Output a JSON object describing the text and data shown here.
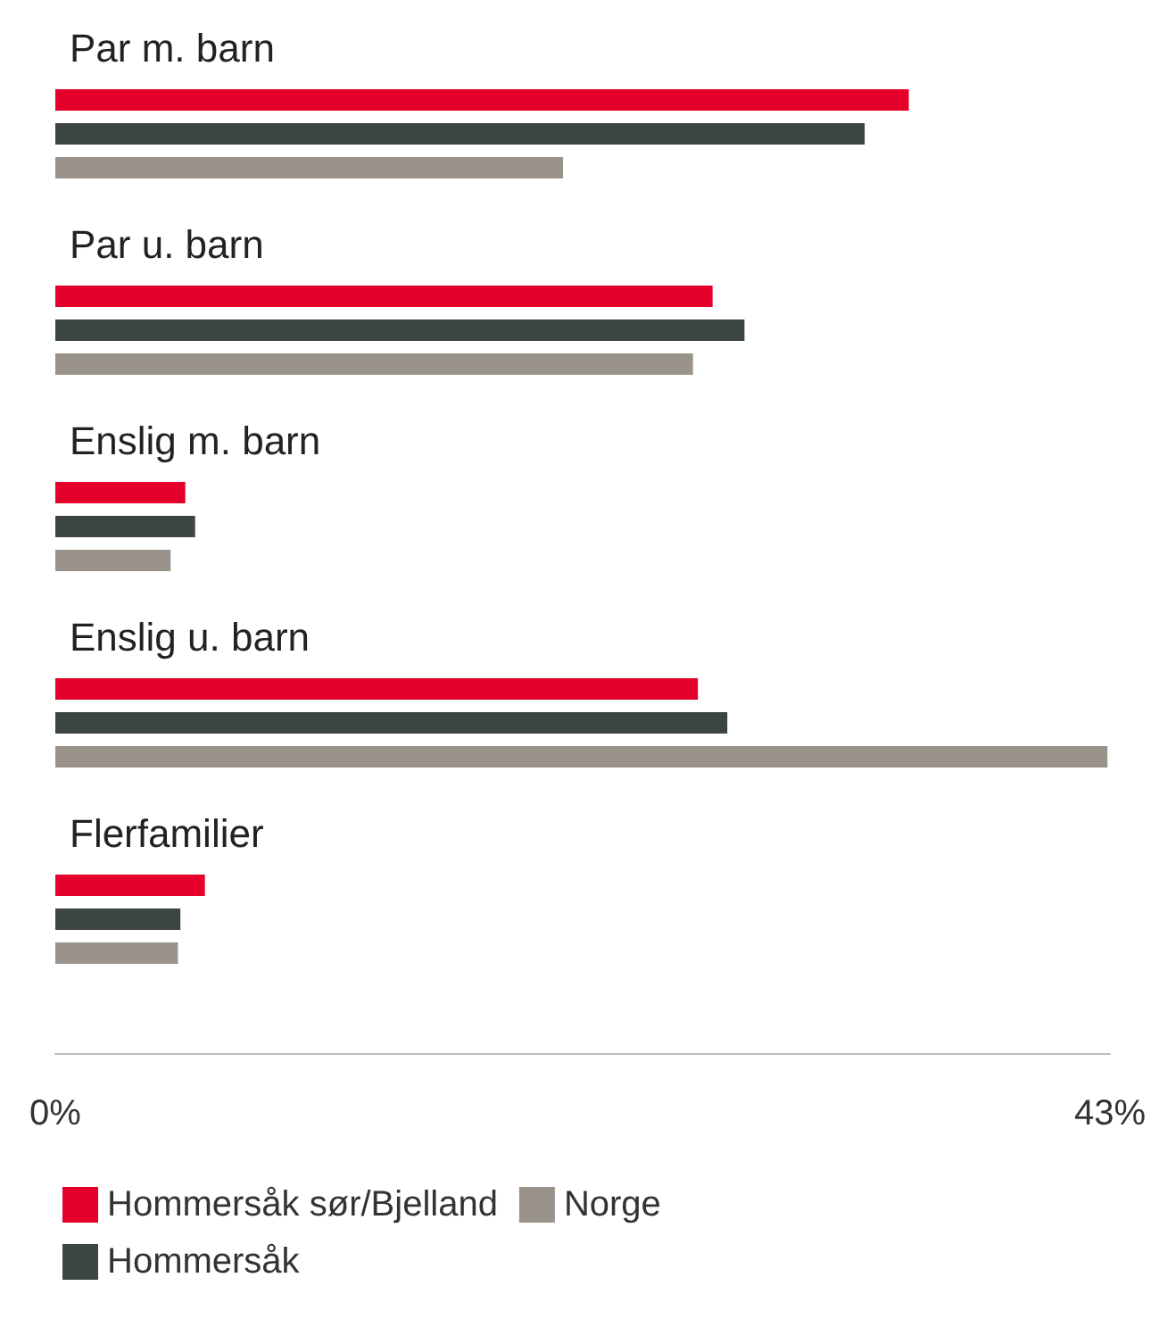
{
  "chart_data": {
    "type": "bar",
    "orientation": "horizontal",
    "categories": [
      "Par m. barn",
      "Par u. barn",
      "Enslig m. barn",
      "Enslig u. barn",
      "Flerfamilier"
    ],
    "series": [
      {
        "name": "Hommersåk sør/Bjelland",
        "color": "#e4002b",
        "values": [
          34.8,
          26.8,
          5.3,
          26.2,
          6.1
        ]
      },
      {
        "name": "Hommersåk",
        "color": "#3d4543",
        "values": [
          33.0,
          28.1,
          5.7,
          27.4,
          5.1
        ]
      },
      {
        "name": "Norge",
        "color": "#9a938c",
        "values": [
          20.7,
          26.0,
          4.7,
          42.9,
          5.0
        ]
      }
    ],
    "xlim": [
      0,
      43
    ],
    "xticks": [
      {
        "value": 0,
        "label": "0%"
      },
      {
        "value": 43,
        "label": "43%"
      }
    ],
    "legend": "bottom"
  }
}
